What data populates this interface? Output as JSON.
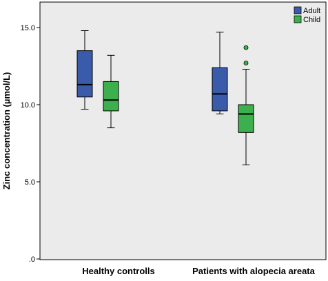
{
  "chart_data": {
    "type": "box",
    "title": "",
    "xlabel": "",
    "ylabel": "Zinc concentration (µmol/L)",
    "ylim": [
      0,
      16.5
    ],
    "y_ticks": [
      {
        "value": 0,
        "label": ".0"
      },
      {
        "value": 5,
        "label": "5.0"
      },
      {
        "value": 10,
        "label": "10.0"
      },
      {
        "value": 15,
        "label": "15.0"
      }
    ],
    "grid": false,
    "legend_position": "top-right",
    "categories": [
      "Healthy controlls",
      "Patients with alopecia areata"
    ],
    "series": [
      {
        "name": "Adult",
        "color": "#3a5ba9",
        "boxes": [
          {
            "min": 9.7,
            "q1": 10.5,
            "median": 11.3,
            "q3": 13.5,
            "max": 14.8,
            "outliers": []
          },
          {
            "min": 9.4,
            "q1": 9.6,
            "median": 10.7,
            "q3": 12.4,
            "max": 14.7,
            "outliers": []
          }
        ]
      },
      {
        "name": "Child",
        "color": "#3cb04c",
        "boxes": [
          {
            "min": 8.5,
            "q1": 9.6,
            "median": 10.3,
            "q3": 11.5,
            "max": 13.2,
            "outliers": []
          },
          {
            "min": 6.1,
            "q1": 8.2,
            "median": 9.4,
            "q3": 10.0,
            "max": 12.3,
            "outliers": [
              12.7,
              13.7
            ]
          }
        ]
      }
    ],
    "plot_background": "#ebebeb"
  }
}
